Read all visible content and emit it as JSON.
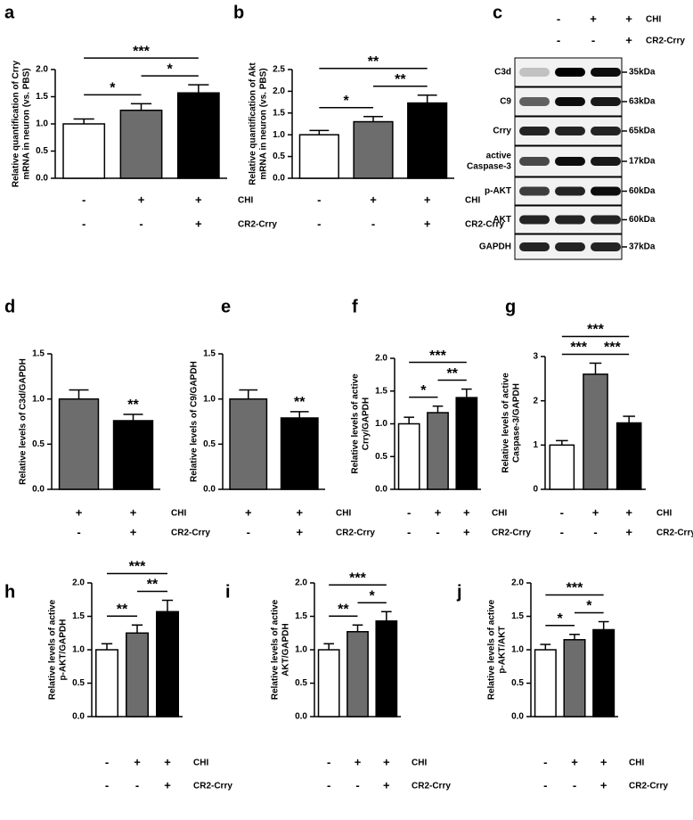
{
  "chart_data": [
    {
      "type": "bar",
      "panel": "a",
      "ylabel": [
        "Relative quantification of Crry",
        "mRNA in neuron (vs. PBS)"
      ],
      "values": [
        1.0,
        1.25,
        1.57
      ],
      "errors": [
        0.09,
        0.12,
        0.15
      ],
      "colors": [
        "#ffffff",
        "#6d6d6d",
        "#000000"
      ],
      "ylim": [
        0,
        2
      ],
      "yticks": [
        {
          "value": 0,
          "label": "0.0"
        },
        0.5,
        {
          "value": 1,
          "label": "1.0"
        },
        1.5,
        {
          "value": 2,
          "label": "2.0"
        }
      ],
      "annotations": [
        "*",
        "*",
        "***"
      ],
      "conditions": [
        {
          "name": "CHI",
          "signs": [
            "-",
            "+",
            "+"
          ]
        },
        {
          "name": "CR2-Crry",
          "signs": [
            "-",
            "-",
            "+"
          ]
        }
      ]
    },
    {
      "type": "bar",
      "panel": "b",
      "ylabel": [
        "Relative quantification of Akt",
        "mRNA in neuron (vs. PBS)"
      ],
      "values": [
        1.0,
        1.3,
        1.73
      ],
      "errors": [
        0.1,
        0.12,
        0.18
      ],
      "colors": [
        "#ffffff",
        "#6d6d6d",
        "#000000"
      ],
      "ylim": [
        0,
        2.5
      ],
      "yticks": [
        {
          "value": 0,
          "label": "0.0"
        },
        0.5,
        {
          "value": 1,
          "label": "1.0"
        },
        1.5,
        {
          "value": 2,
          "label": "2.0"
        },
        2.5
      ],
      "annotations": [
        "*",
        "**",
        "**"
      ],
      "conditions": [
        {
          "name": "CHI",
          "signs": [
            "-",
            "+",
            "+"
          ]
        },
        {
          "name": "CR2-Crry",
          "signs": [
            "-",
            "-",
            "+"
          ]
        }
      ]
    },
    {
      "type": "bar",
      "panel": "d",
      "ylabel": [
        "Relative levels of C3d/GAPDH"
      ],
      "values": [
        1.0,
        0.76
      ],
      "errors": [
        0.1,
        0.07
      ],
      "colors": [
        "#6d6d6d",
        "#000000"
      ],
      "ylim": [
        0,
        1.5
      ],
      "yticks": [
        {
          "value": 0,
          "label": "0.0"
        },
        0.5,
        {
          "value": 1,
          "label": "1.0"
        },
        1.5
      ],
      "annotations": [
        "**"
      ],
      "conditions": [
        {
          "name": "CHI",
          "signs": [
            "+",
            "+"
          ]
        },
        {
          "name": "CR2-Crry",
          "signs": [
            "-",
            "+"
          ]
        }
      ]
    },
    {
      "type": "bar",
      "panel": "e",
      "ylabel": [
        "Relative levels of C9/GAPDH"
      ],
      "values": [
        1.0,
        0.79
      ],
      "errors": [
        0.1,
        0.07
      ],
      "colors": [
        "#6d6d6d",
        "#000000"
      ],
      "ylim": [
        0,
        1.5
      ],
      "yticks": [
        {
          "value": 0,
          "label": "0.0"
        },
        0.5,
        {
          "value": 1,
          "label": "1.0"
        },
        1.5
      ],
      "annotations": [
        "**"
      ],
      "conditions": [
        {
          "name": "CHI",
          "signs": [
            "+",
            "+"
          ]
        },
        {
          "name": "CR2-Crry",
          "signs": [
            "-",
            "+"
          ]
        }
      ]
    },
    {
      "type": "bar",
      "panel": "f",
      "ylabel": [
        "Relative levels of active",
        "Crry/GAPDH"
      ],
      "values": [
        1.0,
        1.17,
        1.4
      ],
      "errors": [
        0.1,
        0.1,
        0.13
      ],
      "colors": [
        "#ffffff",
        "#6d6d6d",
        "#000000"
      ],
      "ylim": [
        0,
        2
      ],
      "yticks": [
        {
          "value": 0,
          "label": "0.0"
        },
        0.5,
        {
          "value": 1,
          "label": "1.0"
        },
        1.5,
        {
          "value": 2,
          "label": "2.0"
        }
      ],
      "annotations": [
        "*",
        "**",
        "***"
      ],
      "conditions": [
        {
          "name": "CHI",
          "signs": [
            "-",
            "+",
            "+"
          ]
        },
        {
          "name": "CR2-Crry",
          "signs": [
            "-",
            "-",
            "+"
          ]
        }
      ]
    },
    {
      "type": "bar",
      "panel": "g",
      "ylabel": [
        "Relative levels of active",
        "Caspase-3/GAPDH"
      ],
      "values": [
        1.0,
        2.6,
        1.5
      ],
      "errors": [
        0.1,
        0.25,
        0.15
      ],
      "colors": [
        "#ffffff",
        "#6d6d6d",
        "#000000"
      ],
      "ylim": [
        0,
        3
      ],
      "yticks": [
        0,
        1,
        2,
        3
      ],
      "annotations": [
        "***",
        "***",
        "***"
      ],
      "conditions": [
        {
          "name": "CHI",
          "signs": [
            "-",
            "+",
            "+"
          ]
        },
        {
          "name": "CR2-Crry",
          "signs": [
            "-",
            "-",
            "+"
          ]
        }
      ]
    },
    {
      "type": "bar",
      "panel": "h",
      "ylabel": [
        "Relative levels of active",
        "p-AKT/GAPDH"
      ],
      "values": [
        1.0,
        1.25,
        1.57
      ],
      "errors": [
        0.09,
        0.12,
        0.17
      ],
      "colors": [
        "#ffffff",
        "#6d6d6d",
        "#000000"
      ],
      "ylim": [
        0,
        2
      ],
      "yticks": [
        {
          "value": 0,
          "label": "0.0"
        },
        0.5,
        {
          "value": 1,
          "label": "1.0"
        },
        1.5,
        {
          "value": 2,
          "label": "2.0"
        }
      ],
      "annotations": [
        "**",
        "**",
        "***"
      ],
      "conditions": [
        {
          "name": "CHI",
          "signs": [
            "-",
            "+",
            "+"
          ]
        },
        {
          "name": "CR2-Crry",
          "signs": [
            "-",
            "-",
            "+"
          ]
        }
      ]
    },
    {
      "type": "bar",
      "panel": "i",
      "ylabel": [
        "Relative levels of active",
        "AKT/GAPDH"
      ],
      "values": [
        1.0,
        1.27,
        1.43
      ],
      "errors": [
        0.09,
        0.1,
        0.14
      ],
      "colors": [
        "#ffffff",
        "#6d6d6d",
        "#000000"
      ],
      "ylim": [
        0,
        2
      ],
      "yticks": [
        {
          "value": 0,
          "label": "0.0"
        },
        0.5,
        {
          "value": 1,
          "label": "1.0"
        },
        1.5,
        {
          "value": 2,
          "label": "2.0"
        }
      ],
      "annotations": [
        "**",
        "*",
        "***"
      ],
      "conditions": [
        {
          "name": "CHI",
          "signs": [
            "-",
            "+",
            "+"
          ]
        },
        {
          "name": "CR2-Crry",
          "signs": [
            "-",
            "-",
            "+"
          ]
        }
      ]
    },
    {
      "type": "bar",
      "panel": "j",
      "ylabel": [
        "Relative levels of active",
        "p-AKT/AKT"
      ],
      "values": [
        1.0,
        1.15,
        1.3
      ],
      "errors": [
        0.08,
        0.08,
        0.12
      ],
      "colors": [
        "#ffffff",
        "#6d6d6d",
        "#000000"
      ],
      "ylim": [
        0,
        2
      ],
      "yticks": [
        {
          "value": 0,
          "label": "0.0"
        },
        0.5,
        {
          "value": 1,
          "label": "1.0"
        },
        1.5,
        {
          "value": 2,
          "label": "2.0"
        }
      ],
      "annotations": [
        "*",
        "*",
        "***"
      ],
      "conditions": [
        {
          "name": "CHI",
          "signs": [
            "-",
            "+",
            "+"
          ]
        },
        {
          "name": "CR2-Crry",
          "signs": [
            "-",
            "-",
            "+"
          ]
        }
      ]
    }
  ],
  "western_blot": {
    "panel": "c",
    "conditions": [
      {
        "name": "CHI",
        "signs": [
          "-",
          "+",
          "+"
        ]
      },
      {
        "name": "CR2-Crry",
        "signs": [
          "-",
          "-",
          "+"
        ]
      }
    ],
    "bands": [
      {
        "label": "C3d",
        "size": "35kDa"
      },
      {
        "label": "C9",
        "size": "63kDa"
      },
      {
        "label": "Crry",
        "size": "65kDa"
      },
      {
        "label": [
          "active",
          "Caspase-3"
        ],
        "size": "17kDa"
      },
      {
        "label": "p-AKT",
        "size": "60kDa"
      },
      {
        "label": "AKT",
        "size": "60kDa"
      },
      {
        "label": "GAPDH",
        "size": "37kDa"
      }
    ]
  }
}
